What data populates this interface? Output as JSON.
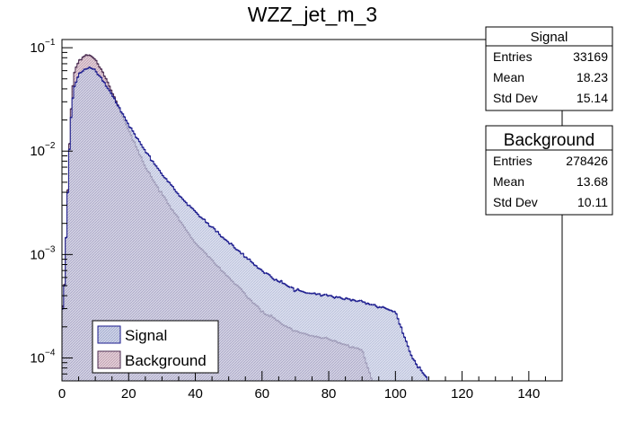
{
  "chart_data": {
    "type": "histogram",
    "title": "WZZ_jet_m_3",
    "xlabel": "",
    "ylabel": "",
    "xlim": [
      0,
      150
    ],
    "ylim": [
      6e-05,
      0.12
    ],
    "log_y": true,
    "bin_width": 0.5,
    "grid": false,
    "x_ticks": [
      "0",
      "20",
      "40",
      "60",
      "80",
      "100",
      "120",
      "140"
    ],
    "y_ticks": [
      {
        "value": 0.1,
        "mantissa": "10",
        "exponent": "−1"
      },
      {
        "value": 0.01,
        "mantissa": "10",
        "exponent": "−2"
      },
      {
        "value": 0.001,
        "mantissa": "10",
        "exponent": "−3"
      },
      {
        "value": 0.0001,
        "mantissa": "10",
        "exponent": "−4"
      }
    ],
    "legend_position": "bottom-left",
    "series": [
      {
        "name": "Signal",
        "line_color": "#1b1b8e",
        "fill_color": "#cfd4e8",
        "profile": {
          "x": [
            0.5,
            1.5,
            2.5,
            3.5,
            5,
            7,
            8.5,
            10,
            12,
            15,
            20,
            25,
            30,
            35,
            40,
            50,
            60,
            70,
            80,
            90,
            100,
            105,
            110,
            120,
            130,
            140,
            150
          ],
          "value": [
            0.0003,
            0.0025,
            0.017,
            0.04,
            0.055,
            0.062,
            0.064,
            0.06,
            0.05,
            0.035,
            0.018,
            0.01,
            0.006,
            0.0038,
            0.0026,
            0.0013,
            0.0007,
            0.00045,
            0.0004,
            0.00035,
            0.00028,
            0.0001,
            6e-05,
            6e-05,
            6e-05,
            6e-05,
            6e-05
          ]
        }
      },
      {
        "name": "Background",
        "line_color": "#4b2d52",
        "fill_color": "#e3cfd8",
        "profile": {
          "x": [
            0.5,
            1.5,
            2.5,
            3.5,
            5,
            7,
            8.5,
            10,
            12,
            15,
            20,
            25,
            30,
            35,
            40,
            50,
            60,
            70,
            80,
            90,
            93,
            100
          ],
          "value": [
            0.0003,
            0.0025,
            0.02,
            0.055,
            0.075,
            0.085,
            0.085,
            0.077,
            0.06,
            0.038,
            0.016,
            0.007,
            0.0038,
            0.0022,
            0.0013,
            0.0006,
            0.00028,
            0.00018,
            0.00015,
            0.00012,
            6e-05,
            6e-05
          ]
        }
      }
    ],
    "stats_boxes": [
      {
        "title": "Signal",
        "rows": [
          [
            "Entries",
            "33169"
          ],
          [
            "Mean",
            "18.23"
          ],
          [
            "Std Dev",
            "15.14"
          ]
        ]
      },
      {
        "title": "Background",
        "rows": [
          [
            "Entries",
            "278426"
          ],
          [
            "Mean",
            "13.68"
          ],
          [
            "Std Dev",
            "10.11"
          ]
        ]
      }
    ]
  }
}
